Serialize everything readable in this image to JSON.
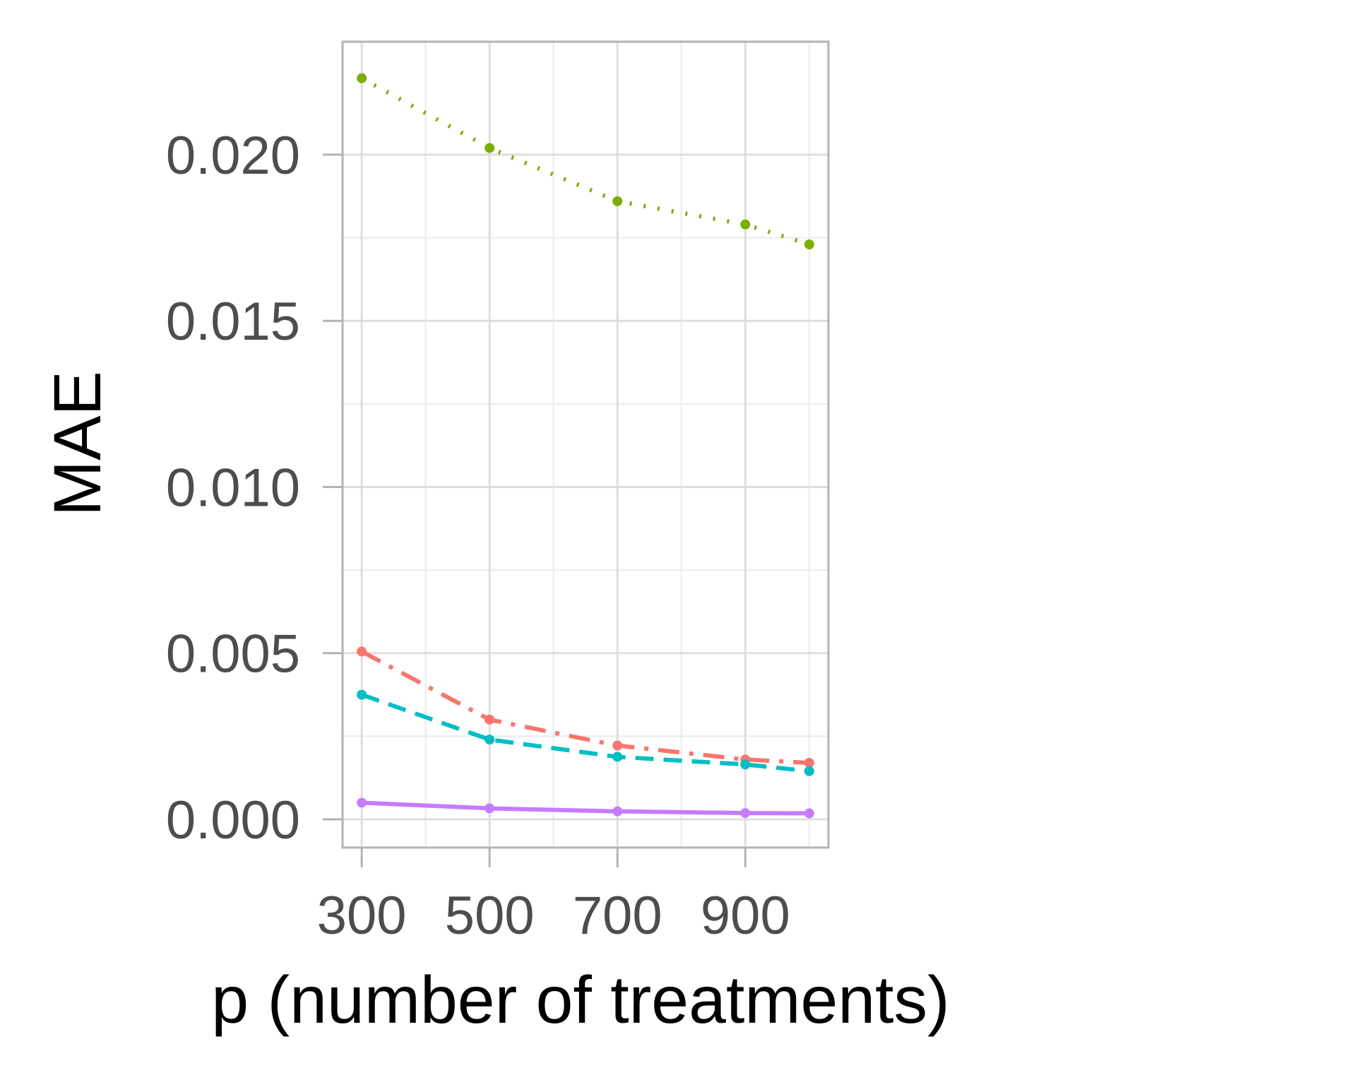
{
  "chart_data": {
    "type": "line",
    "title": "",
    "xlabel": "p (number of treatments)",
    "ylabel": "MAE",
    "xlim": [
      270,
      1030
    ],
    "ylim": [
      -0.00085,
      0.0234
    ],
    "x_ticks": [
      300,
      500,
      700,
      900
    ],
    "x_tick_labels": [
      "300",
      "500",
      "700",
      "900"
    ],
    "x_minor_ticks": [
      400,
      600,
      800,
      1000
    ],
    "y_ticks": [
      0.0,
      0.005,
      0.01,
      0.015,
      0.02
    ],
    "y_tick_labels": [
      "0.000",
      "0.005",
      "0.010",
      "0.015",
      "0.020"
    ],
    "y_minor_ticks": [
      0.0025,
      0.0075,
      0.0125,
      0.0175
    ],
    "grid": true,
    "legend": "none",
    "x": [
      300,
      500,
      700,
      900,
      1000
    ],
    "series": [
      {
        "values": [
          0.0223,
          0.0202,
          0.0186,
          0.0179,
          0.0173
        ],
        "color": "#7cae00",
        "dash": "dotted"
      },
      {
        "values": [
          0.00505,
          0.003,
          0.00222,
          0.0018,
          0.0017
        ],
        "color": "#f8766d",
        "dash": "dashdot"
      },
      {
        "values": [
          0.00375,
          0.0024,
          0.00188,
          0.00165,
          0.00145
        ],
        "color": "#00bfc4",
        "dash": "dashed"
      },
      {
        "values": [
          0.0005,
          0.00033,
          0.00024,
          0.00019,
          0.00018
        ],
        "color": "#c77cff",
        "dash": "solid"
      }
    ]
  }
}
